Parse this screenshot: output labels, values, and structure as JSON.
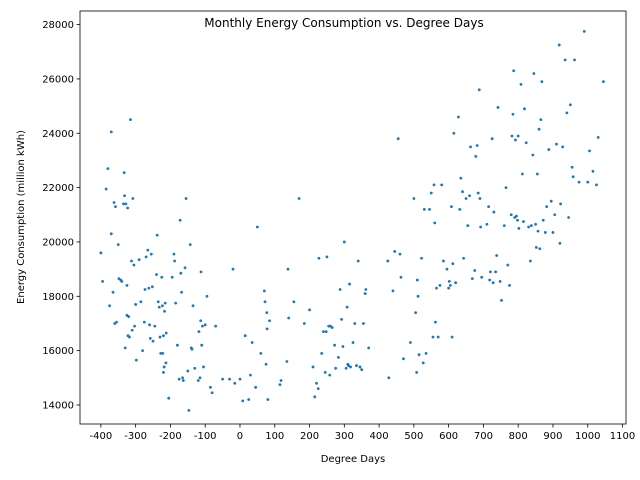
{
  "chart_data": {
    "type": "scatter",
    "title": "Monthly Energy Consumption vs. Degree Days",
    "xlabel": "Degree Days",
    "ylabel": "Energy Consumption (million kWh)",
    "xlim": [
      -460,
      1110
    ],
    "ylim": [
      13300,
      28500
    ],
    "xticks": [
      -400,
      -300,
      -200,
      -100,
      0,
      100,
      200,
      300,
      400,
      500,
      600,
      700,
      800,
      900,
      1000,
      1100
    ],
    "yticks": [
      14000,
      16000,
      18000,
      20000,
      22000,
      24000,
      26000,
      28000
    ],
    "grid": false,
    "legend": "none",
    "marker_color": "#1f77b4",
    "series": [
      {
        "points": [
          [
            -400,
            19600
          ],
          [
            -395,
            18550
          ],
          [
            -385,
            21950
          ],
          [
            -380,
            22700
          ],
          [
            -375,
            17650
          ],
          [
            -370,
            24050
          ],
          [
            -370,
            20300
          ],
          [
            -365,
            18150
          ],
          [
            -362,
            21450
          ],
          [
            -360,
            17000
          ],
          [
            -358,
            21300
          ],
          [
            -355,
            17050
          ],
          [
            -350,
            19900
          ],
          [
            -348,
            18650
          ],
          [
            -343,
            18600
          ],
          [
            -340,
            18550
          ],
          [
            -335,
            21400
          ],
          [
            -333,
            22550
          ],
          [
            -332,
            21700
          ],
          [
            -330,
            16100
          ],
          [
            -328,
            21400
          ],
          [
            -325,
            18400
          ],
          [
            -325,
            17300
          ],
          [
            -323,
            21250
          ],
          [
            -322,
            16550
          ],
          [
            -320,
            17250
          ],
          [
            -318,
            16500
          ],
          [
            -315,
            24500
          ],
          [
            -312,
            19300
          ],
          [
            -310,
            16750
          ],
          [
            -308,
            21600
          ],
          [
            -305,
            19150
          ],
          [
            -303,
            16900
          ],
          [
            -300,
            17700
          ],
          [
            -298,
            15650
          ],
          [
            -290,
            19350
          ],
          [
            -285,
            17800
          ],
          [
            -280,
            16000
          ],
          [
            -275,
            17050
          ],
          [
            -273,
            18250
          ],
          [
            -270,
            19450
          ],
          [
            -265,
            19700
          ],
          [
            -262,
            18300
          ],
          [
            -260,
            16950
          ],
          [
            -258,
            16450
          ],
          [
            -255,
            19550
          ],
          [
            -252,
            18350
          ],
          [
            -250,
            16350
          ],
          [
            -245,
            16900
          ],
          [
            -240,
            18800
          ],
          [
            -238,
            20250
          ],
          [
            -235,
            17800
          ],
          [
            -232,
            17600
          ],
          [
            -230,
            16500
          ],
          [
            -228,
            15900
          ],
          [
            -225,
            18700
          ],
          [
            -223,
            17650
          ],
          [
            -222,
            15900
          ],
          [
            -220,
            16550
          ],
          [
            -220,
            15200
          ],
          [
            -218,
            15400
          ],
          [
            -217,
            17450
          ],
          [
            -215,
            17750
          ],
          [
            -213,
            15550
          ],
          [
            -212,
            16650
          ],
          [
            -205,
            14250
          ],
          [
            -195,
            18700
          ],
          [
            -190,
            19550
          ],
          [
            -188,
            19300
          ],
          [
            -185,
            17750
          ],
          [
            -180,
            16200
          ],
          [
            -175,
            14950
          ],
          [
            -172,
            20800
          ],
          [
            -170,
            18850
          ],
          [
            -168,
            18150
          ],
          [
            -165,
            15000
          ],
          [
            -163,
            14900
          ],
          [
            -158,
            19050
          ],
          [
            -155,
            21600
          ],
          [
            -150,
            15250
          ],
          [
            -147,
            13800
          ],
          [
            -143,
            19900
          ],
          [
            -140,
            16100
          ],
          [
            -138,
            16050
          ],
          [
            -135,
            17650
          ],
          [
            -130,
            15350
          ],
          [
            -120,
            14900
          ],
          [
            -118,
            16700
          ],
          [
            -115,
            15000
          ],
          [
            -113,
            17100
          ],
          [
            -112,
            18900
          ],
          [
            -110,
            16200
          ],
          [
            -108,
            16900
          ],
          [
            -105,
            15400
          ],
          [
            -100,
            16950
          ],
          [
            -95,
            18000
          ],
          [
            -85,
            14650
          ],
          [
            -80,
            14450
          ],
          [
            -70,
            16900
          ],
          [
            -50,
            14950
          ],
          [
            -30,
            14950
          ],
          [
            -20,
            19000
          ],
          [
            -15,
            14800
          ],
          [
            0,
            14950
          ],
          [
            8,
            14150
          ],
          [
            15,
            16550
          ],
          [
            25,
            14200
          ],
          [
            30,
            15100
          ],
          [
            35,
            16300
          ],
          [
            45,
            14650
          ],
          [
            50,
            20550
          ],
          [
            60,
            15900
          ],
          [
            70,
            18200
          ],
          [
            72,
            17800
          ],
          [
            75,
            15500
          ],
          [
            77,
            17400
          ],
          [
            78,
            16800
          ],
          [
            80,
            14200
          ],
          [
            85,
            17100
          ],
          [
            115,
            14750
          ],
          [
            118,
            14900
          ],
          [
            135,
            15600
          ],
          [
            138,
            19000
          ],
          [
            140,
            17200
          ],
          [
            155,
            17800
          ],
          [
            170,
            21600
          ],
          [
            185,
            17000
          ],
          [
            200,
            17500
          ],
          [
            210,
            15400
          ],
          [
            215,
            14300
          ],
          [
            220,
            14800
          ],
          [
            225,
            14600
          ],
          [
            227,
            19400
          ],
          [
            235,
            15900
          ],
          [
            240,
            16700
          ],
          [
            245,
            15200
          ],
          [
            248,
            16700
          ],
          [
            250,
            19450
          ],
          [
            255,
            16900
          ],
          [
            258,
            15100
          ],
          [
            260,
            16900
          ],
          [
            265,
            16850
          ],
          [
            272,
            16200
          ],
          [
            275,
            15350
          ],
          [
            283,
            15750
          ],
          [
            288,
            18250
          ],
          [
            292,
            17150
          ],
          [
            296,
            16150
          ],
          [
            300,
            20000
          ],
          [
            305,
            15350
          ],
          [
            308,
            17600
          ],
          [
            310,
            15500
          ],
          [
            312,
            15450
          ],
          [
            315,
            18450
          ],
          [
            318,
            15400
          ],
          [
            325,
            16300
          ],
          [
            330,
            17000
          ],
          [
            335,
            15450
          ],
          [
            340,
            19300
          ],
          [
            345,
            15400
          ],
          [
            350,
            15300
          ],
          [
            355,
            17000
          ],
          [
            360,
            18100
          ],
          [
            362,
            18250
          ],
          [
            370,
            16100
          ],
          [
            425,
            19300
          ],
          [
            428,
            15000
          ],
          [
            440,
            18200
          ],
          [
            445,
            19650
          ],
          [
            455,
            23800
          ],
          [
            460,
            19550
          ],
          [
            463,
            18700
          ],
          [
            470,
            15700
          ],
          [
            490,
            16300
          ],
          [
            500,
            21600
          ],
          [
            505,
            17400
          ],
          [
            508,
            15200
          ],
          [
            510,
            18600
          ],
          [
            512,
            18000
          ],
          [
            515,
            15850
          ],
          [
            522,
            19400
          ],
          [
            527,
            15550
          ],
          [
            530,
            21200
          ],
          [
            535,
            15900
          ],
          [
            545,
            21200
          ],
          [
            550,
            21800
          ],
          [
            555,
            16500
          ],
          [
            558,
            22100
          ],
          [
            560,
            20700
          ],
          [
            562,
            17050
          ],
          [
            565,
            18300
          ],
          [
            570,
            16500
          ],
          [
            575,
            18400
          ],
          [
            580,
            22100
          ],
          [
            585,
            19300
          ],
          [
            595,
            19000
          ],
          [
            600,
            18300
          ],
          [
            602,
            18550
          ],
          [
            605,
            18400
          ],
          [
            608,
            21300
          ],
          [
            610,
            16500
          ],
          [
            612,
            19200
          ],
          [
            615,
            24000
          ],
          [
            620,
            18500
          ],
          [
            628,
            24600
          ],
          [
            632,
            21200
          ],
          [
            635,
            22350
          ],
          [
            640,
            21850
          ],
          [
            643,
            19400
          ],
          [
            650,
            21600
          ],
          [
            655,
            20600
          ],
          [
            660,
            21700
          ],
          [
            663,
            23500
          ],
          [
            668,
            18650
          ],
          [
            675,
            18950
          ],
          [
            678,
            23150
          ],
          [
            682,
            23550
          ],
          [
            685,
            21800
          ],
          [
            688,
            25600
          ],
          [
            690,
            21600
          ],
          [
            692,
            20550
          ],
          [
            695,
            18700
          ],
          [
            710,
            20650
          ],
          [
            715,
            21300
          ],
          [
            718,
            18600
          ],
          [
            720,
            18900
          ],
          [
            725,
            23800
          ],
          [
            728,
            18500
          ],
          [
            730,
            21100
          ],
          [
            735,
            18900
          ],
          [
            738,
            19500
          ],
          [
            742,
            24950
          ],
          [
            748,
            18550
          ],
          [
            752,
            17850
          ],
          [
            760,
            20600
          ],
          [
            765,
            22000
          ],
          [
            770,
            19150
          ],
          [
            775,
            18400
          ],
          [
            780,
            21000
          ],
          [
            782,
            23900
          ],
          [
            785,
            24700
          ],
          [
            787,
            26300
          ],
          [
            790,
            20900
          ],
          [
            792,
            23750
          ],
          [
            795,
            20950
          ],
          [
            798,
            20800
          ],
          [
            800,
            23900
          ],
          [
            802,
            20500
          ],
          [
            808,
            25800
          ],
          [
            812,
            22500
          ],
          [
            815,
            20750
          ],
          [
            818,
            24900
          ],
          [
            823,
            23650
          ],
          [
            830,
            20550
          ],
          [
            835,
            19300
          ],
          [
            838,
            20600
          ],
          [
            842,
            23200
          ],
          [
            845,
            26200
          ],
          [
            850,
            20650
          ],
          [
            852,
            19800
          ],
          [
            855,
            22500
          ],
          [
            857,
            20400
          ],
          [
            860,
            24150
          ],
          [
            862,
            19750
          ],
          [
            865,
            24500
          ],
          [
            868,
            25900
          ],
          [
            872,
            20800
          ],
          [
            878,
            20350
          ],
          [
            882,
            21300
          ],
          [
            888,
            23400
          ],
          [
            895,
            21500
          ],
          [
            900,
            20350
          ],
          [
            905,
            21000
          ],
          [
            910,
            23600
          ],
          [
            918,
            27250
          ],
          [
            920,
            19950
          ],
          [
            922,
            21400
          ],
          [
            928,
            23500
          ],
          [
            935,
            26700
          ],
          [
            940,
            24750
          ],
          [
            945,
            20900
          ],
          [
            950,
            25050
          ],
          [
            955,
            22750
          ],
          [
            958,
            22400
          ],
          [
            962,
            26700
          ],
          [
            975,
            22200
          ],
          [
            990,
            27750
          ],
          [
            1000,
            22200
          ],
          [
            1005,
            23350
          ],
          [
            1015,
            22600
          ],
          [
            1025,
            22100
          ],
          [
            1030,
            23850
          ],
          [
            1045,
            25900
          ]
        ]
      }
    ]
  }
}
